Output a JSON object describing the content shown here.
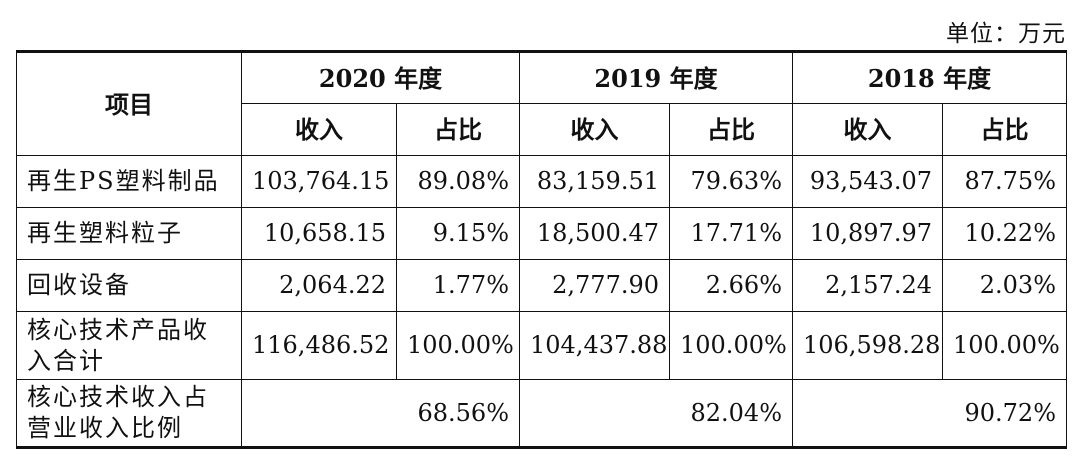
{
  "unit_note": "单位：万元",
  "table": {
    "item_header": "项目",
    "years": [
      "2020 年度",
      "2019 年度",
      "2018 年度"
    ],
    "sub_headers": {
      "revenue": "收入",
      "share": "占比"
    },
    "rows": [
      {
        "item": "再生PS塑料制品",
        "values": [
          "103,764.15",
          "89.08%",
          "83,159.51",
          "79.63%",
          "93,543.07",
          "87.75%"
        ]
      },
      {
        "item": "再生塑料粒子",
        "values": [
          "10,658.15",
          "9.15%",
          "18,500.47",
          "17.71%",
          "10,897.97",
          "10.22%"
        ]
      },
      {
        "item": "回收设备",
        "values": [
          "2,064.22",
          "1.77%",
          "2,777.90",
          "2.66%",
          "2,157.24",
          "2.03%"
        ]
      },
      {
        "item": "核心技术产品收入合计",
        "values": [
          "116,486.52",
          "100.00%",
          "104,437.88",
          "100.00%",
          "106,598.28",
          "100.00%"
        ]
      }
    ],
    "ratio_row": {
      "item": "核心技术收入占营业收入比例",
      "values": [
        "68.56%",
        "82.04%",
        "90.72%"
      ]
    }
  }
}
